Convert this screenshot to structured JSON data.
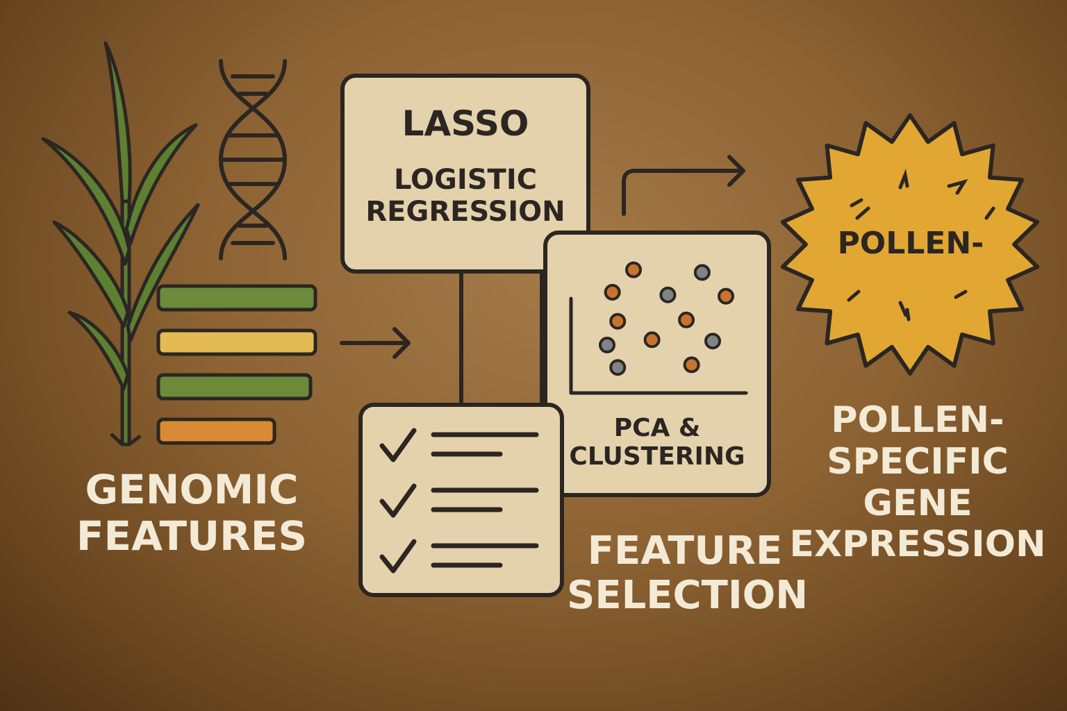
{
  "labels": {
    "genomic": "GENOMIC\nFEATURES",
    "lasso_title": "LASSO",
    "lasso_sub": "LOGISTIC\nREGRESSION",
    "pca": "PCA &\nCLUSTERING",
    "feature_selection": "FEATURE\nSELECTION",
    "pollen_badge": "POLLEN-",
    "output": "POLLEN-\nSPECIFIC\nGENE\nEXPRESSION"
  },
  "feature_bars": [
    {
      "color": "#6b8a3a",
      "fraction": 1.0
    },
    {
      "color": "#e3bb52",
      "fraction": 1.0
    },
    {
      "color": "#6b8a3a",
      "fraction": 0.97
    },
    {
      "color": "#d98a35",
      "fraction": 0.74
    }
  ],
  "scatter_points": [
    {
      "color": "orange",
      "x": 2.0,
      "y": 8.6
    },
    {
      "color": "gray",
      "x": 4.6,
      "y": 8.4
    },
    {
      "color": "orange",
      "x": 1.2,
      "y": 6.9
    },
    {
      "color": "gray",
      "x": 3.3,
      "y": 6.7
    },
    {
      "color": "orange",
      "x": 5.5,
      "y": 6.6
    },
    {
      "color": "orange",
      "x": 1.4,
      "y": 4.7
    },
    {
      "color": "orange",
      "x": 4.0,
      "y": 4.8
    },
    {
      "color": "gray",
      "x": 1.0,
      "y": 2.9
    },
    {
      "color": "orange",
      "x": 2.7,
      "y": 3.3
    },
    {
      "color": "gray",
      "x": 5.0,
      "y": 3.2
    },
    {
      "color": "gray",
      "x": 1.4,
      "y": 1.2
    },
    {
      "color": "orange",
      "x": 4.2,
      "y": 1.4
    }
  ],
  "checklist_items": 3,
  "colors": {
    "outline": "#2b2622",
    "box_fill": "#e4d2ac",
    "text_light": "#f3ead6",
    "leaf_green": "#5e8032",
    "pollen_yellow": "#e2a733",
    "point_orange": "#c8732e",
    "point_gray": "#7f8585"
  },
  "icons": [
    "plant-icon",
    "dna-icon",
    "checkmark-icon",
    "arrow-right-icon",
    "pollen-grain-icon"
  ]
}
